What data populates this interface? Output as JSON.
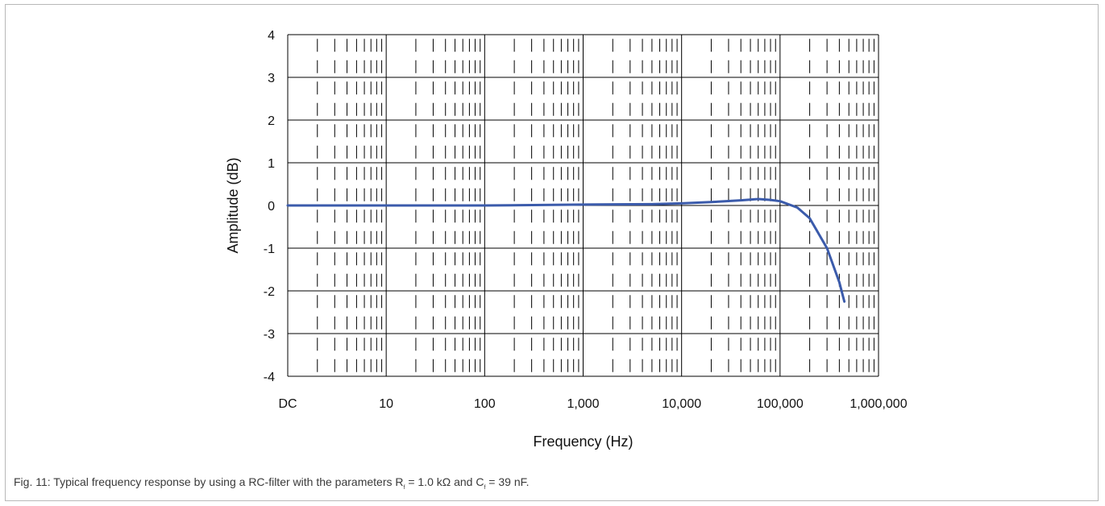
{
  "chart_data": {
    "type": "line",
    "title": "",
    "xlabel": "Frequency (Hz)",
    "ylabel": "Amplitude (dB)",
    "x_scale": "log",
    "x_tick_labels": [
      "DC",
      "10",
      "100",
      "1,000",
      "10,000",
      "100,000",
      "1,000,000"
    ],
    "y_tick_labels": [
      "4",
      "3",
      "2",
      "1",
      "0",
      "-1",
      "-2",
      "-3",
      "-4"
    ],
    "ylim": [
      -4,
      4
    ],
    "grid": true,
    "legend": "none",
    "series": [
      {
        "color": "#3b5bab",
        "x": [
          "DC",
          10,
          100,
          1000,
          5000,
          10000,
          20000,
          40000,
          60000,
          80000,
          100000,
          150000,
          200000,
          300000,
          400000,
          450000
        ],
        "values": [
          0,
          0,
          0,
          0.02,
          0.03,
          0.05,
          0.08,
          0.12,
          0.15,
          0.13,
          0.1,
          -0.05,
          -0.3,
          -1.0,
          -1.8,
          -2.25
        ]
      }
    ]
  },
  "caption": {
    "prefix": "Fig. 11: Typical frequency response by using a RC-filter with the parameters R",
    "r_sub": "f",
    "middle": " = 1.0 kΩ and C",
    "c_sub": "f",
    "suffix": " = 39 nF."
  }
}
